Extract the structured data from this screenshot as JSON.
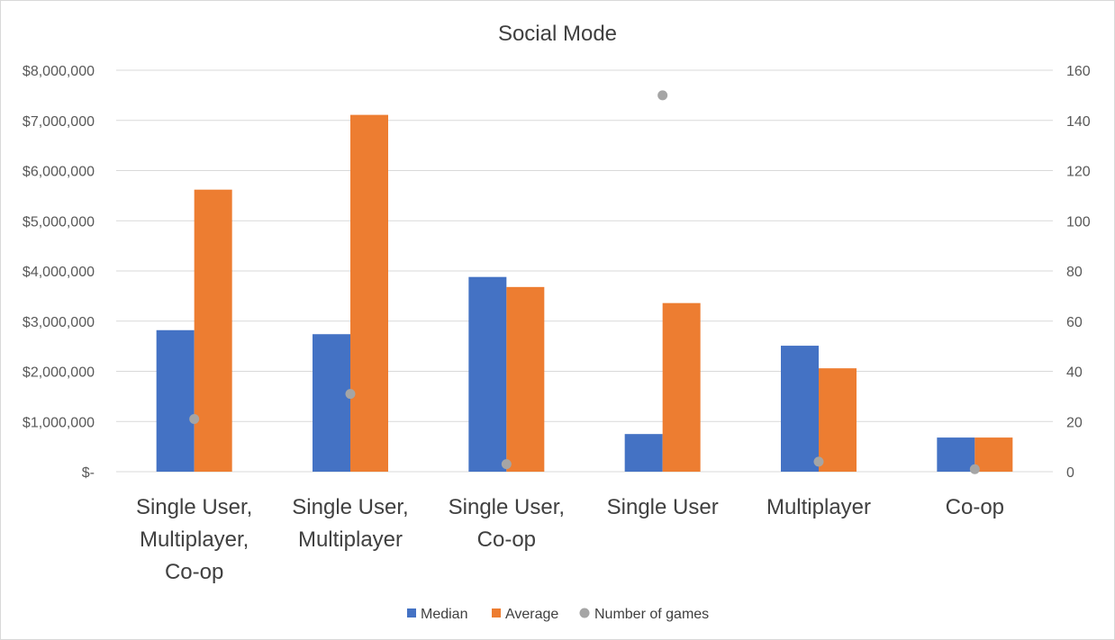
{
  "chart_data": {
    "type": "bar",
    "title": "Social Mode",
    "categories": [
      [
        "Single User,",
        "Multiplayer,",
        "Co-op"
      ],
      [
        "Single User,",
        "Multiplayer"
      ],
      [
        "Single User,",
        "Co-op"
      ],
      [
        "Single User"
      ],
      [
        "Multiplayer"
      ],
      [
        "Co-op"
      ]
    ],
    "series": [
      {
        "name": "Median",
        "type": "bar",
        "axis": "left",
        "color": "#4472C4",
        "values": [
          2820000,
          2740000,
          3880000,
          750000,
          2510000,
          680000
        ]
      },
      {
        "name": "Average",
        "type": "bar",
        "axis": "left",
        "color": "#ED7D31",
        "values": [
          5620000,
          7110000,
          3680000,
          3360000,
          2060000,
          680000
        ]
      },
      {
        "name": "Number of games",
        "type": "scatter",
        "axis": "right",
        "color": "#A5A5A5",
        "values": [
          21,
          31,
          3,
          150,
          4,
          1
        ]
      }
    ],
    "ylim_left": [
      0,
      8000000
    ],
    "ylim_right": [
      0,
      160
    ],
    "left_ticks": [
      "$-",
      "$1,000,000",
      "$2,000,000",
      "$3,000,000",
      "$4,000,000",
      "$5,000,000",
      "$6,000,000",
      "$7,000,000",
      "$8,000,000"
    ],
    "right_ticks": [
      "0",
      "20",
      "40",
      "60",
      "80",
      "100",
      "120",
      "140",
      "160"
    ],
    "grid": true,
    "legend_position": "bottom"
  }
}
